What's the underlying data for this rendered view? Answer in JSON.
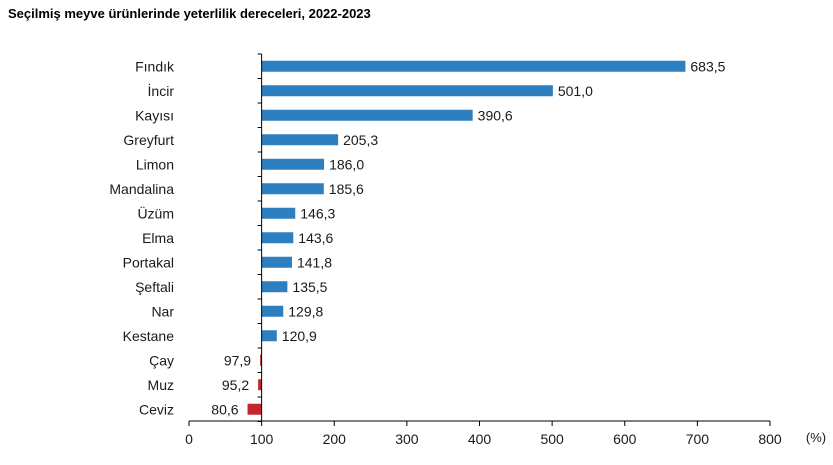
{
  "title": "Seçilmiş meyve ürünlerinde yeterlilik dereceleri, 2022-2023",
  "chart_data": {
    "type": "bar",
    "orientation": "horizontal",
    "title": "Seçilmiş meyve ürünlerinde yeterlilik dereceleri, 2022-2023",
    "categories": [
      "Fındık",
      "İncir",
      "Kayısı",
      "Greyfurt",
      "Limon",
      "Mandalina",
      "Üzüm",
      "Elma",
      "Portakal",
      "Şeftali",
      "Nar",
      "Kestane",
      "Çay",
      "Muz",
      "Ceviz"
    ],
    "values": [
      683.5,
      501.0,
      390.6,
      205.3,
      186.0,
      185.6,
      146.3,
      143.6,
      141.8,
      135.5,
      129.8,
      120.9,
      97.9,
      95.2,
      80.6
    ],
    "value_labels": [
      "683,5",
      "501,0",
      "390,6",
      "205,3",
      "186,0",
      "185,6",
      "146,3",
      "143,6",
      "141,8",
      "135,5",
      "129,8",
      "120,9",
      "97,9",
      "95,2",
      "80,6"
    ],
    "baseline": 100,
    "xlim": [
      0,
      800
    ],
    "xticks": [
      0,
      100,
      200,
      300,
      400,
      500,
      600,
      700,
      800
    ],
    "unit_label": "(%)",
    "grid": false,
    "colors": {
      "above": "#2e7fc0",
      "below": "#c0282e"
    }
  }
}
